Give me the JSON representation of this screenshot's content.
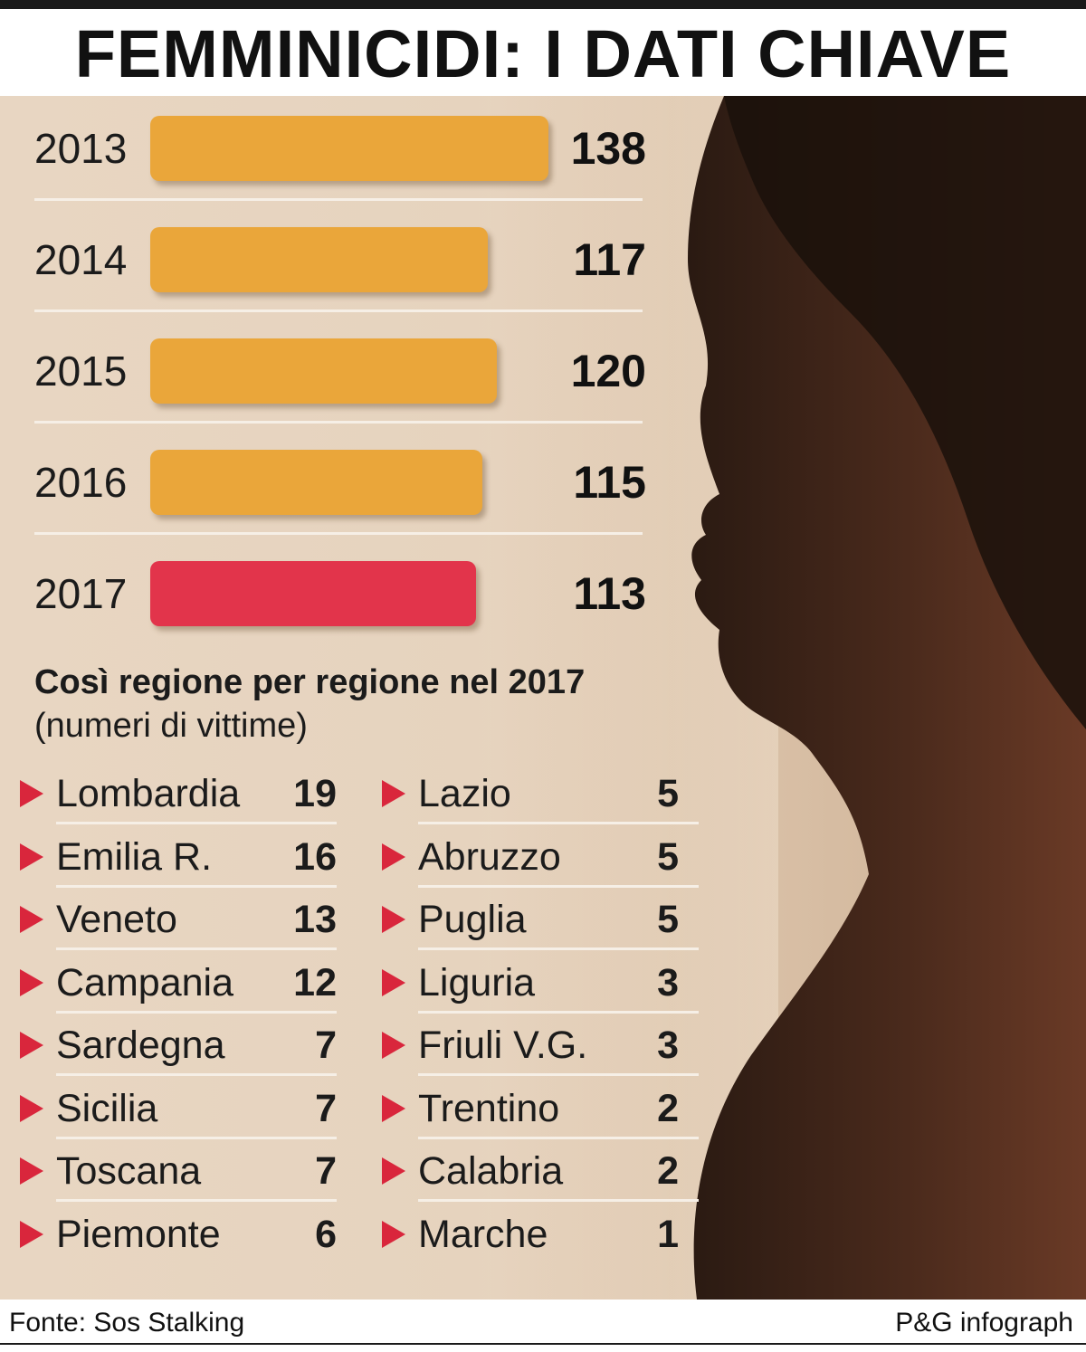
{
  "title": "FEMMINICIDI: I DATI CHIAVE",
  "colors": {
    "bar_default": "#eaa63a",
    "bar_highlight": "#e2344b",
    "arrow": "#d9263c"
  },
  "chart_data": [
    {
      "type": "bar",
      "orientation": "horizontal",
      "categories": [
        "2013",
        "2014",
        "2015",
        "2016",
        "2017"
      ],
      "values": [
        138,
        117,
        120,
        115,
        113
      ],
      "highlight_category": "2017",
      "xlim": [
        0,
        140
      ]
    },
    {
      "type": "table",
      "title": "Così regione per regione nel 2017",
      "subtitle": "(numeri di vittime)",
      "columns": [
        [
          {
            "region": "Lombardia",
            "value": 19
          },
          {
            "region": "Emilia R.",
            "value": 16
          },
          {
            "region": "Veneto",
            "value": 13
          },
          {
            "region": "Campania",
            "value": 12
          },
          {
            "region": "Sardegna",
            "value": 7
          },
          {
            "region": "Sicilia",
            "value": 7
          },
          {
            "region": "Toscana",
            "value": 7
          },
          {
            "region": "Piemonte",
            "value": 6
          }
        ],
        [
          {
            "region": "Lazio",
            "value": 5
          },
          {
            "region": "Abruzzo",
            "value": 5
          },
          {
            "region": "Puglia",
            "value": 5
          },
          {
            "region": "Liguria",
            "value": 3
          },
          {
            "region": "Friuli V.G.",
            "value": 3
          },
          {
            "region": "Trentino",
            "value": 2
          },
          {
            "region": "Calabria",
            "value": 2
          },
          {
            "region": "Marche",
            "value": 1
          }
        ]
      ]
    }
  ],
  "footer": {
    "source": "Fonte: Sos Stalking",
    "credit": "P&G infograph"
  }
}
